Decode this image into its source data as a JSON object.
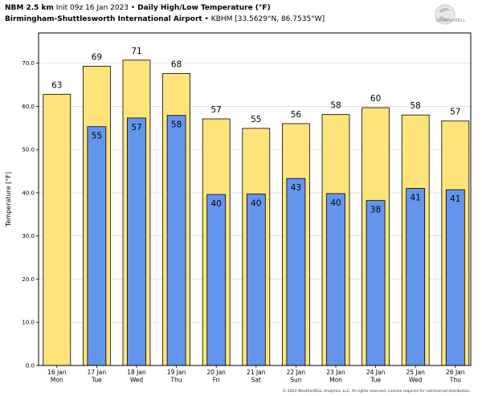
{
  "header": {
    "model": "NBM 2.5 km",
    "init": "Init 09z 16 Jan 2023",
    "separator": "•",
    "title": "Daily High/Low Temperature (°F)",
    "station_name": "Birmingham-Shuttlesworth International Airport",
    "station_id": "KBHM [33.5629°N, 86.7535°W]"
  },
  "logo_text": "WeatherBELL",
  "footer": "© 2023 WeatherBELL Analytics, LLC. All rights reserved. License required for commercial distribution.",
  "colors": {
    "high": "#FDE37A",
    "low": "#6495ED",
    "outline": "#000000"
  },
  "chart_data": {
    "type": "bar",
    "ylabel": "Temperature [°F]",
    "ylim": [
      0,
      77
    ],
    "yticks": [
      "0.0",
      "10.0",
      "20.0",
      "30.0",
      "40.0",
      "50.0",
      "60.0",
      "70.0"
    ],
    "grid": true,
    "categories": [
      {
        "date": "16 Jan",
        "day": "Mon"
      },
      {
        "date": "17 Jan",
        "day": "Tue"
      },
      {
        "date": "18 Jan",
        "day": "Wed"
      },
      {
        "date": "19 Jan",
        "day": "Thu"
      },
      {
        "date": "20 Jan",
        "day": "Fri"
      },
      {
        "date": "21 Jan",
        "day": "Sat"
      },
      {
        "date": "22 Jan",
        "day": "Sun"
      },
      {
        "date": "23 Jan",
        "day": "Mon"
      },
      {
        "date": "24 Jan",
        "day": "Tue"
      },
      {
        "date": "25 Jan",
        "day": "Wed"
      },
      {
        "date": "26 Jan",
        "day": "Thu"
      }
    ],
    "highs": {
      "values": [
        62.8,
        69.3,
        70.7,
        67.6,
        57.1,
        54.9,
        56.0,
        58.1,
        59.7,
        58.0,
        56.6
      ],
      "labels": [
        "63",
        "69",
        "71",
        "68",
        "57",
        "55",
        "56",
        "58",
        "60",
        "58",
        "57"
      ]
    },
    "lows": {
      "values": [
        null,
        55.3,
        57.3,
        57.9,
        39.6,
        39.7,
        43.3,
        39.8,
        38.2,
        41.0,
        40.7
      ],
      "labels": [
        null,
        "55",
        "57",
        "58",
        "40",
        "40",
        "43",
        "40",
        "38",
        "41",
        "41"
      ]
    }
  }
}
